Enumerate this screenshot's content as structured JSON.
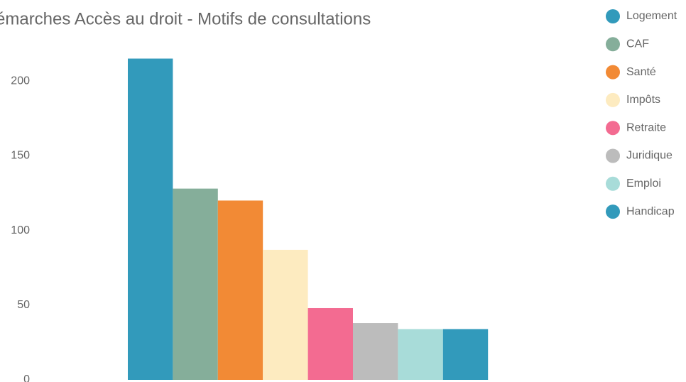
{
  "chart_data": {
    "type": "bar",
    "title": "émarches Accès au droit - Motifs de consultations",
    "categories": [
      "Logement",
      "CAF",
      "Santé",
      "Impôts",
      "Retraite",
      "Juridique",
      "Emploi",
      "Handicap"
    ],
    "values": [
      215,
      128,
      120,
      87,
      48,
      38,
      34,
      34
    ],
    "colors": [
      "#329abb",
      "#85ae9a",
      "#f28a35",
      "#fdebc0",
      "#f36b91",
      "#bcbcbc",
      "#a8dcd9",
      "#329abb"
    ],
    "ylim": [
      0,
      220
    ],
    "yticks": [
      0,
      50,
      100,
      150,
      200
    ],
    "grid": false,
    "legend": "right"
  }
}
